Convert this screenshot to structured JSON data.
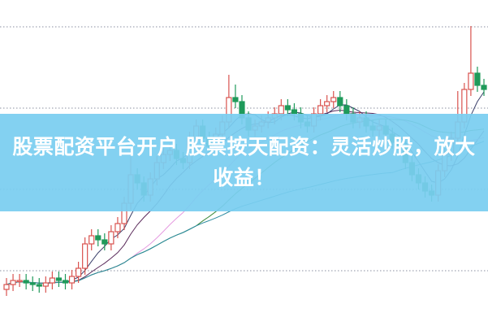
{
  "banner": {
    "title": "股票配资平台开户 股票按天配资：灵活炒股，放大收益！"
  },
  "colors": {
    "up": "#d9534f",
    "down": "#1f9a5a",
    "banner": "#7acef0",
    "grid": "#8a8fa0",
    "ma": [
      "#3a3f6a",
      "#5a2a5a",
      "#e59ae0",
      "#3c8a3c",
      "#2a8aa0"
    ]
  },
  "chart_data": {
    "type": "candlestick",
    "grid": "horizontal dotted",
    "ylim": [
      0,
      100
    ],
    "moving_averages": [
      5,
      10,
      20,
      30,
      60
    ],
    "open": [
      11,
      12.5,
      13.75,
      13.75,
      13,
      12.5,
      12,
      13,
      14.5,
      13.75,
      13,
      15,
      17.5,
      25,
      27.5,
      26.25,
      25,
      28.75,
      31.25,
      37.5,
      46.25,
      43.75,
      40,
      45,
      50,
      52.5,
      53.75,
      51.25,
      50,
      57.5,
      61.25,
      57.5,
      55,
      58.75,
      62.5,
      70,
      68.75,
      63.75,
      60,
      61.25,
      62.5,
      63.75,
      65,
      67.5,
      66.25,
      65,
      62.5,
      61.25,
      65,
      67.5,
      68.75,
      70,
      67.5,
      65,
      62.5,
      63.75,
      61.25,
      60,
      61.25,
      58.75,
      56.25,
      55,
      50,
      46.25,
      43.75,
      41.25,
      40,
      47.5,
      52.5,
      57.5,
      62.5,
      72.5,
      77.5,
      73.75
    ],
    "high": [
      14.5,
      15.75,
      15.75,
      15.75,
      15,
      14.5,
      15,
      16.5,
      16.5,
      15.75,
      17,
      19.5,
      27,
      29.5,
      29.5,
      28.25,
      30.75,
      33.25,
      39.5,
      52,
      48.25,
      45.75,
      47,
      52,
      54.5,
      55.75,
      55.75,
      53.25,
      59.5,
      63.25,
      63.25,
      59.5,
      60.75,
      64.5,
      77,
      74,
      70.75,
      65.75,
      63.25,
      64.5,
      65.75,
      67,
      69.5,
      69.5,
      68.25,
      67,
      64.5,
      67,
      69.5,
      70.75,
      72,
      72,
      69.5,
      67,
      65.75,
      65.75,
      63.25,
      63.25,
      63.25,
      60.75,
      58.25,
      57,
      52,
      48.25,
      45.75,
      43.25,
      49.5,
      54.5,
      59.5,
      72,
      74.5,
      92,
      79.5,
      75.75
    ],
    "low": [
      9,
      10.5,
      11.75,
      11,
      10.5,
      10,
      10,
      11,
      11.75,
      11,
      11,
      13,
      15.5,
      23,
      24.25,
      23,
      23,
      26.75,
      29.25,
      35.5,
      41.75,
      38,
      38,
      43,
      48,
      50.5,
      49.25,
      48,
      48,
      55.5,
      55.5,
      53,
      53,
      56.75,
      60.5,
      66.75,
      61.75,
      58,
      58,
      59.25,
      60.5,
      61.75,
      63,
      64.25,
      63,
      60.5,
      59.25,
      59.25,
      63,
      65.5,
      66.75,
      65.5,
      63,
      60.5,
      60.5,
      59.25,
      58,
      58,
      56.75,
      54.25,
      53,
      48,
      44.25,
      41.75,
      39.25,
      38,
      38,
      45.5,
      50.5,
      55.5,
      60.5,
      70.5,
      71.75,
      70.5
    ],
    "close": [
      12.5,
      13.75,
      13.75,
      13,
      12.5,
      12,
      13,
      14.5,
      13.75,
      13,
      15,
      17.5,
      25,
      27.5,
      26.25,
      25,
      28.75,
      31.25,
      37.5,
      46.25,
      43.75,
      40,
      45,
      50,
      52.5,
      53.75,
      51.25,
      50,
      57.5,
      61.25,
      57.5,
      55,
      58.75,
      62.5,
      70,
      68.75,
      63.75,
      60,
      61.25,
      62.5,
      63.75,
      65,
      67.5,
      66.25,
      65,
      62.5,
      61.25,
      65,
      67.5,
      68.75,
      70,
      67.5,
      65,
      62.5,
      63.75,
      61.25,
      60,
      61.25,
      58.75,
      56.25,
      55,
      50,
      46.25,
      43.75,
      41.25,
      40,
      47.5,
      52.5,
      57.5,
      62.5,
      72.5,
      77.5,
      73.75,
      72.5
    ]
  }
}
